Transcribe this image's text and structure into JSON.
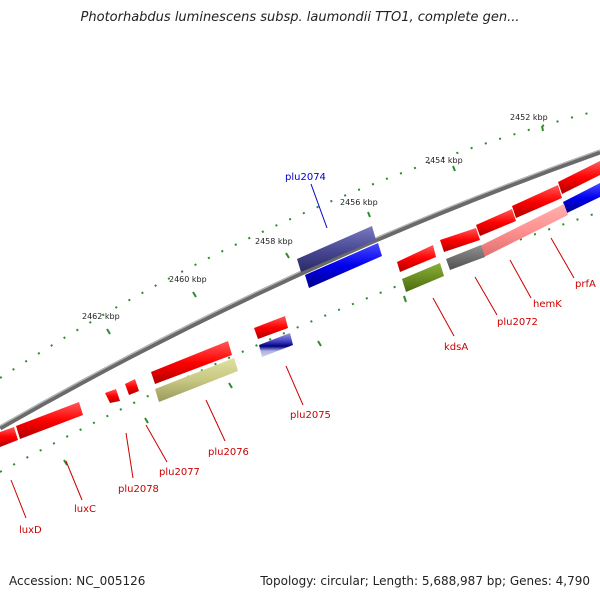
{
  "title": "Photorhabdus luminescens subsp. laumondii TTO1, complete gen...",
  "footer": {
    "accession": "Accession: NC_005126",
    "summary": "Topology: circular; Length: 5,688,987 bp; Genes: 4,790"
  },
  "colors": {
    "backbone": "#808080",
    "tick": "#2e8b2e",
    "forward_gene": "#ff0000",
    "gene_label": "#cc0000",
    "selected_label": "#0000cc"
  },
  "ticks": [
    {
      "label": "2452 kbp"
    },
    {
      "label": "2454 kbp"
    },
    {
      "label": "2456 kbp"
    },
    {
      "label": "2458 kbp"
    },
    {
      "label": "2460 kbp"
    },
    {
      "label": "2462 kbp"
    }
  ],
  "genes": [
    {
      "name": "prfA",
      "color": "#cc0000"
    },
    {
      "name": "hemK",
      "color": "#cc0000"
    },
    {
      "name": "plu2072",
      "color": "#cc0000"
    },
    {
      "name": "kdsA",
      "color": "#cc0000"
    },
    {
      "name": "plu2074",
      "color": "#0000cc"
    },
    {
      "name": "plu2075",
      "color": "#cc0000"
    },
    {
      "name": "plu2076",
      "color": "#cc0000"
    },
    {
      "name": "plu2077",
      "color": "#cc0000"
    },
    {
      "name": "plu2078",
      "color": "#cc0000"
    },
    {
      "name": "luxC",
      "color": "#cc0000"
    },
    {
      "name": "luxD",
      "color": "#cc0000"
    }
  ]
}
